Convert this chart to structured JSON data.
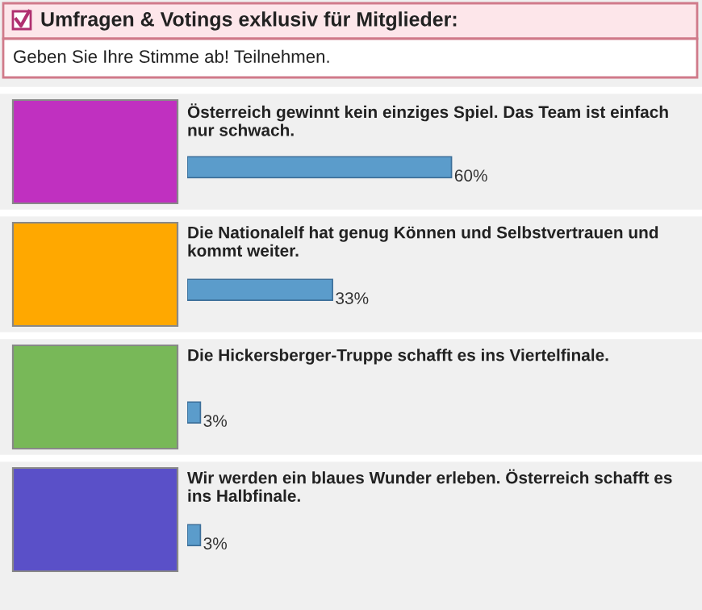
{
  "chart_data": {
    "type": "bar",
    "orientation": "horizontal",
    "title": "Umfragen & Votings exklusiv für Mitglieder:",
    "subtitle": "Geben Sie Ihre Stimme ab! Teilnehmen.",
    "categories": [
      "Österreich gewinnt kein einziges Spiel. Das Team ist einfach nur schwach.",
      "Die Nationalelf hat genug Können und Selbstvertrauen und kommt weiter.",
      "Die Hickersberger-Truppe schafft es ins Viertelfinale.",
      "Wir werden ein blaues Wunder erleben. Österreich schafft es ins Halbfinale."
    ],
    "values": [
      60,
      33,
      3,
      3
    ],
    "value_labels": [
      "60%",
      "33%",
      "3%",
      "3%"
    ],
    "color": "#5b9ccb"
  }
}
